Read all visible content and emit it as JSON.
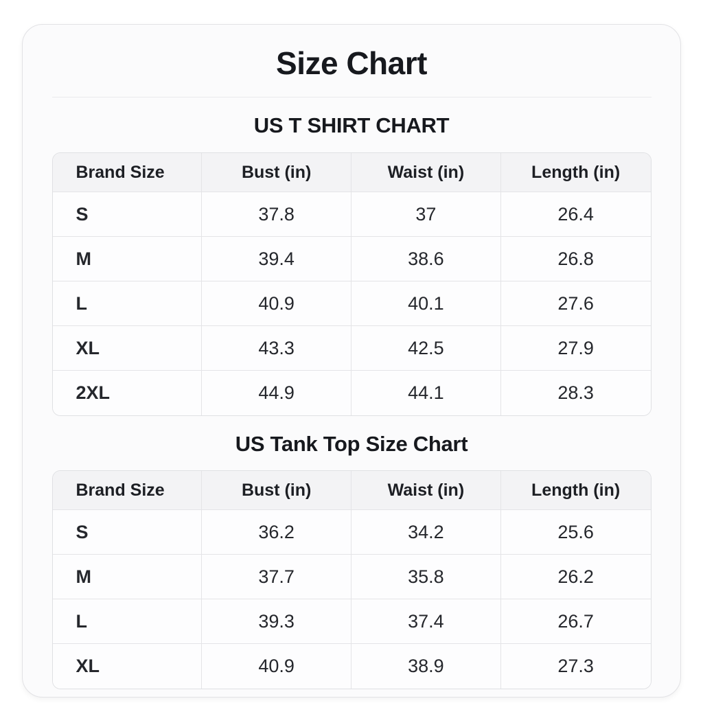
{
  "title": "Size Chart",
  "colors": {
    "card_background": "#fbfbfc",
    "card_border": "#e2e2e5",
    "header_row_background": "#f3f3f5",
    "cell_border": "#e4e4e7",
    "text": "#1d1f24"
  },
  "chart_data": [
    {
      "type": "table",
      "title": "US T SHIRT CHART",
      "columns": [
        "Brand Size",
        "Bust (in)",
        "Waist (in)",
        "Length (in)"
      ],
      "rows": [
        [
          "S",
          "37.8",
          "37",
          "26.4"
        ],
        [
          "M",
          "39.4",
          "38.6",
          "26.8"
        ],
        [
          "L",
          "40.9",
          "40.1",
          "27.6"
        ],
        [
          "XL",
          "43.3",
          "42.5",
          "27.9"
        ],
        [
          "2XL",
          "44.9",
          "44.1",
          "28.3"
        ]
      ]
    },
    {
      "type": "table",
      "title": "US Tank Top Size Chart",
      "columns": [
        "Brand Size",
        "Bust (in)",
        "Waist (in)",
        "Length (in)"
      ],
      "rows": [
        [
          "S",
          "36.2",
          "34.2",
          "25.6"
        ],
        [
          "M",
          "37.7",
          "35.8",
          "26.2"
        ],
        [
          "L",
          "39.3",
          "37.4",
          "26.7"
        ],
        [
          "XL",
          "40.9",
          "38.9",
          "27.3"
        ]
      ]
    }
  ]
}
